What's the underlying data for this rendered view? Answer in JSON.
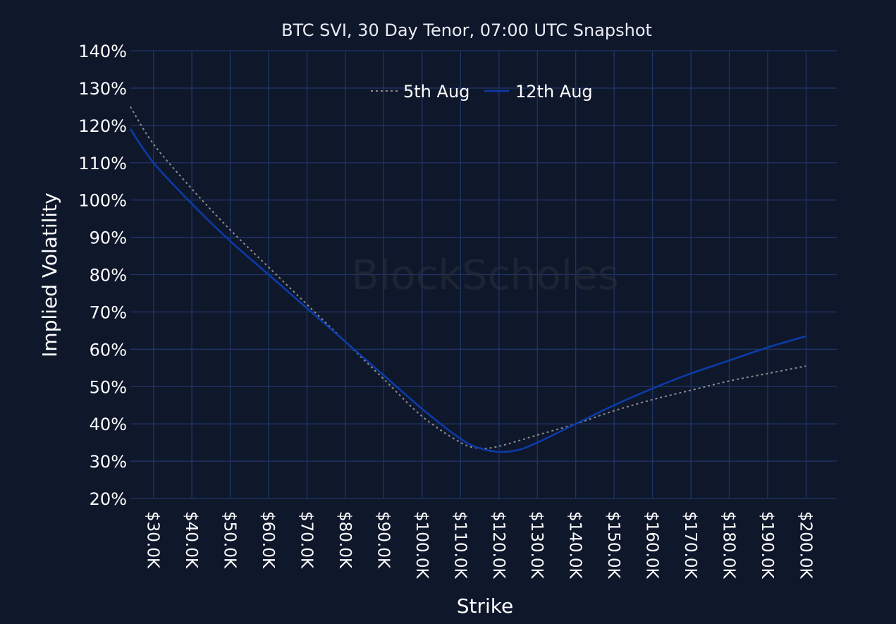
{
  "chart_data": {
    "type": "line",
    "title": "BTC SVI, 30 Day Tenor, 07:00 UTC Snapshot",
    "xlabel": "Strike",
    "ylabel": "Implied Volatility",
    "watermark": "BlockScholes",
    "xlim": [
      24000,
      208000
    ],
    "ylim": [
      20,
      140
    ],
    "x_ticks": [
      30000,
      40000,
      50000,
      60000,
      70000,
      80000,
      90000,
      100000,
      110000,
      120000,
      130000,
      140000,
      150000,
      160000,
      170000,
      180000,
      190000,
      200000
    ],
    "x_tick_labels": [
      "$30.0K",
      "$40.0K",
      "$50.0K",
      "$60.0K",
      "$70.0K",
      "$80.0K",
      "$90.0K",
      "$100.0K",
      "$110.0K",
      "$120.0K",
      "$130.0K",
      "$140.0K",
      "$150.0K",
      "$160.0K",
      "$170.0K",
      "$180.0K",
      "$190.0K",
      "$200.0K"
    ],
    "y_ticks": [
      20,
      30,
      40,
      50,
      60,
      70,
      80,
      90,
      100,
      110,
      120,
      130,
      140
    ],
    "y_tick_labels": [
      "20%",
      "30%",
      "40%",
      "50%",
      "60%",
      "70%",
      "80%",
      "90%",
      "100%",
      "110%",
      "120%",
      "130%",
      "140%"
    ],
    "grid": true,
    "legend_position": "top-center",
    "series": [
      {
        "name": "5th Aug",
        "color": "#8c8c8c",
        "style": "dotted",
        "x": [
          24000,
          30000,
          40000,
          50000,
          60000,
          70000,
          80000,
          90000,
          100000,
          110000,
          115000,
          120000,
          130000,
          140000,
          150000,
          160000,
          170000,
          180000,
          190000,
          200000
        ],
        "y": [
          125,
          115,
          103,
          92,
          82,
          72,
          62,
          52,
          42,
          35,
          33.5,
          34,
          37,
          40,
          43.5,
          46.5,
          49,
          51.5,
          53.5,
          55.5
        ]
      },
      {
        "name": "12th Aug",
        "color": "#0b3ba8",
        "style": "solid",
        "x": [
          24000,
          30000,
          40000,
          50000,
          60000,
          70000,
          80000,
          90000,
          100000,
          110000,
          115000,
          120000,
          125000,
          130000,
          140000,
          150000,
          160000,
          170000,
          180000,
          190000,
          200000
        ],
        "y": [
          119,
          110,
          99,
          89,
          80,
          71,
          62,
          53,
          44,
          36,
          33.5,
          32.5,
          33,
          35,
          40,
          45,
          49.5,
          53.5,
          57,
          60.5,
          63.5
        ]
      }
    ]
  }
}
